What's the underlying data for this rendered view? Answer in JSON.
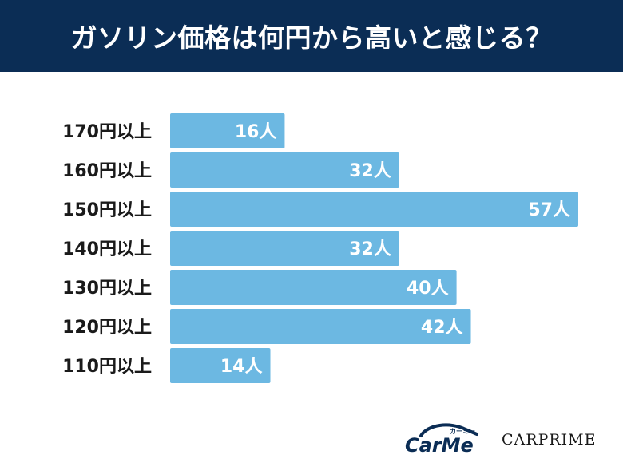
{
  "header": {
    "title": "ガソリン価格は何円から高いと感じる？"
  },
  "chart_data": {
    "type": "bar",
    "orientation": "horizontal",
    "categories": [
      "170円以上",
      "160円以上",
      "150円以上",
      "140円以上",
      "130円以上",
      "120円以上",
      "110円以上"
    ],
    "values": [
      16,
      32,
      57,
      32,
      40,
      42,
      14
    ],
    "value_labels": [
      "16人",
      "32人",
      "57人",
      "32人",
      "40人",
      "42人",
      "14人"
    ],
    "xlim": [
      0,
      57
    ],
    "bar_color": "#6cb8e2",
    "grid": false
  },
  "logos": {
    "carme_text": "CarMe",
    "carme_kana": "カーミー",
    "carprime_text": "CARPRIME"
  },
  "colors": {
    "header_bg": "#0b2d55",
    "bar": "#6cb8e2",
    "text": "#1a1a1a"
  }
}
